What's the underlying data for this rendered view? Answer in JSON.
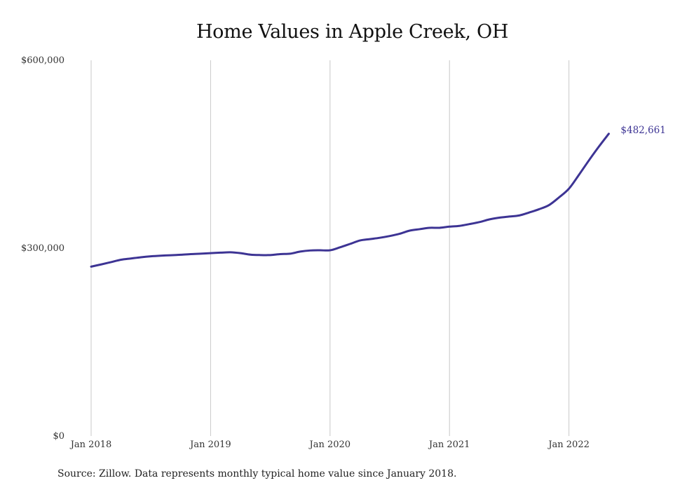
{
  "chart_data": {
    "type": "line",
    "title": "Home Values in Apple Creek, OH",
    "xlabel": "",
    "ylabel": "",
    "x_tick_labels": [
      "Jan 2018",
      "Jan 2019",
      "Jan 2020",
      "Jan 2021",
      "Jan 2022"
    ],
    "y_tick_labels": [
      "$0",
      "$300,000",
      "$600,000"
    ],
    "y_ticks": [
      0,
      300000,
      600000
    ],
    "ylim": [
      0,
      600000
    ],
    "xlim": [
      "2018-01",
      "2022-05"
    ],
    "grid": {
      "vertical": true,
      "horizontal": false
    },
    "legend": "none",
    "end_label": "$482,661",
    "line_color": "#3d3494",
    "grid_color": "#c8c8c8",
    "series": [
      {
        "x": [
          "2018-01",
          "2018-02",
          "2018-03",
          "2018-04",
          "2018-05",
          "2018-06",
          "2018-07",
          "2018-08",
          "2018-09",
          "2018-10",
          "2018-11",
          "2018-12",
          "2019-01",
          "2019-02",
          "2019-03",
          "2019-04",
          "2019-05",
          "2019-06",
          "2019-07",
          "2019-08",
          "2019-09",
          "2019-10",
          "2019-11",
          "2019-12",
          "2020-01",
          "2020-02",
          "2020-03",
          "2020-04",
          "2020-05",
          "2020-06",
          "2020-07",
          "2020-08",
          "2020-09",
          "2020-10",
          "2020-11",
          "2020-12",
          "2021-01",
          "2021-02",
          "2021-03",
          "2021-04",
          "2021-05",
          "2021-06",
          "2021-07",
          "2021-08",
          "2021-09",
          "2021-10",
          "2021-11",
          "2021-12",
          "2022-01",
          "2022-02",
          "2022-03",
          "2022-04",
          "2022-05"
        ],
        "values": [
          270500,
          274000,
          277700,
          281500,
          283500,
          285500,
          287000,
          288000,
          288700,
          289500,
          290500,
          291200,
          292000,
          292800,
          293400,
          292000,
          289700,
          289000,
          289000,
          290500,
          291200,
          294500,
          296300,
          296600,
          296600,
          301300,
          306700,
          312200,
          314400,
          316600,
          319400,
          323000,
          328000,
          330300,
          332500,
          332500,
          334400,
          335600,
          338400,
          341600,
          345900,
          348700,
          350500,
          352200,
          356900,
          362200,
          368800,
          381000,
          395000,
          417000,
          440000,
          462000,
          482661
        ]
      }
    ]
  },
  "source_note": "Source: Zillow. Data represents monthly typical home value since January 2018."
}
